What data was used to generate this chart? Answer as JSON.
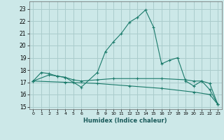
{
  "xlabel": "Humidex (Indice chaleur)",
  "background_color": "#cce8e8",
  "grid_color": "#aacccc",
  "line_color": "#1a7a6a",
  "xlim": [
    -0.5,
    23.5
  ],
  "ylim": [
    14.8,
    23.6
  ],
  "yticks": [
    15,
    16,
    17,
    18,
    19,
    20,
    21,
    22,
    23
  ],
  "xticks": [
    0,
    1,
    2,
    3,
    4,
    5,
    6,
    8,
    9,
    10,
    11,
    12,
    13,
    14,
    15,
    16,
    17,
    18,
    19,
    20,
    21,
    22,
    23
  ],
  "series1": [
    [
      0,
      17.1
    ],
    [
      1,
      17.8
    ],
    [
      2,
      17.7
    ],
    [
      3,
      17.5
    ],
    [
      4,
      17.4
    ],
    [
      5,
      17.0
    ],
    [
      6,
      16.6
    ],
    [
      8,
      17.8
    ],
    [
      9,
      19.5
    ],
    [
      10,
      20.3
    ],
    [
      11,
      21.0
    ],
    [
      12,
      21.9
    ],
    [
      13,
      22.3
    ],
    [
      14,
      22.9
    ],
    [
      15,
      21.5
    ],
    [
      16,
      18.5
    ],
    [
      17,
      18.8
    ],
    [
      18,
      19.0
    ],
    [
      19,
      17.1
    ],
    [
      20,
      16.7
    ],
    [
      21,
      17.1
    ],
    [
      22,
      16.4
    ],
    [
      23,
      15.2
    ]
  ],
  "series2": [
    [
      0,
      17.1
    ],
    [
      2,
      17.6
    ],
    [
      3,
      17.5
    ],
    [
      4,
      17.4
    ],
    [
      5,
      17.2
    ],
    [
      6,
      17.1
    ],
    [
      8,
      17.2
    ],
    [
      10,
      17.3
    ],
    [
      13,
      17.3
    ],
    [
      16,
      17.3
    ],
    [
      19,
      17.2
    ],
    [
      20,
      17.1
    ],
    [
      21,
      17.1
    ],
    [
      22,
      16.9
    ],
    [
      23,
      15.2
    ]
  ],
  "series3": [
    [
      0,
      17.1
    ],
    [
      4,
      17.0
    ],
    [
      8,
      16.9
    ],
    [
      12,
      16.7
    ],
    [
      16,
      16.5
    ],
    [
      20,
      16.2
    ],
    [
      22,
      16.0
    ],
    [
      23,
      15.2
    ]
  ]
}
